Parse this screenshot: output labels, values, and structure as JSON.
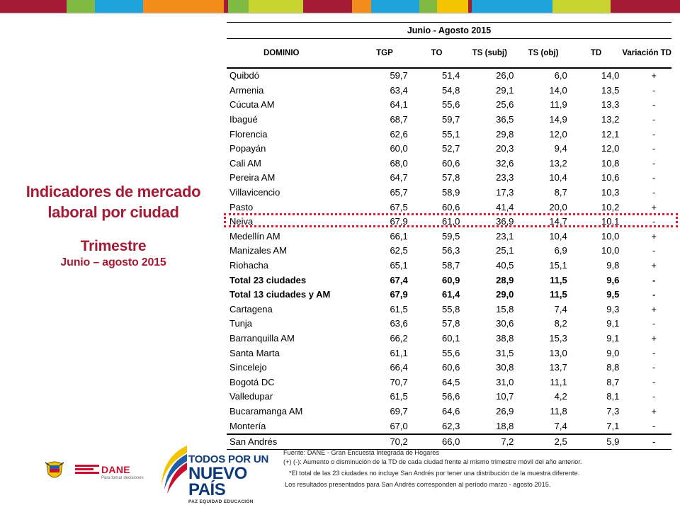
{
  "topbar": {
    "colors": [
      "#a51b35",
      "#a51b35",
      "#7fba42",
      "#1fa3dc",
      "#f28c1a",
      "#a51b35",
      "#7fba42",
      "#c7d32f",
      "#a51b35",
      "#f28c1a",
      "#1fa3dc",
      "#7fba42",
      "#f2c500",
      "#a51b35",
      "#1fa3dc",
      "#c7d32f",
      "#a51b35"
    ]
  },
  "left": {
    "title_line1": "Indicadores de mercado",
    "title_line2": "laboral por ciudad",
    "subtitle": "Trimestre",
    "period": "Junio – agosto 2015"
  },
  "table": {
    "title": "Junio - Agosto 2015",
    "headers": [
      "DOMINIO",
      "TGP",
      "TO",
      "TS (subj)",
      "TS (obj)",
      "TD",
      "Variación TD"
    ],
    "rows": [
      [
        "Quibdó",
        "59,7",
        "51,4",
        "26,0",
        "6,0",
        "14,0",
        "+"
      ],
      [
        "Armenia",
        "63,4",
        "54,8",
        "29,1",
        "14,0",
        "13,5",
        "-"
      ],
      [
        "Cúcuta AM",
        "64,1",
        "55,6",
        "25,6",
        "11,9",
        "13,3",
        "-"
      ],
      [
        "Ibagué",
        "68,7",
        "59,7",
        "36,5",
        "14,9",
        "13,2",
        "-"
      ],
      [
        "Florencia",
        "62,6",
        "55,1",
        "29,8",
        "12,0",
        "12,1",
        "-"
      ],
      [
        "Popayán",
        "60,0",
        "52,7",
        "20,3",
        "9,4",
        "12,0",
        "-"
      ],
      [
        "Cali AM",
        "68,0",
        "60,6",
        "32,6",
        "13,2",
        "10,8",
        "-"
      ],
      [
        "Pereira AM",
        "64,7",
        "57,8",
        "23,3",
        "10,4",
        "10,6",
        "-"
      ],
      [
        "Villavicencio",
        "65,7",
        "58,9",
        "17,3",
        "8,7",
        "10,3",
        "-"
      ],
      [
        "Pasto",
        "67,5",
        "60,6",
        "41,4",
        "20,0",
        "10,2",
        "+"
      ],
      [
        "Neiva",
        "67,9",
        "61,0",
        "36,9",
        "14,7",
        "10,1",
        "-"
      ],
      [
        "Medellín AM",
        "66,1",
        "59,5",
        "23,1",
        "10,4",
        "10,0",
        "+"
      ],
      [
        "Manizales AM",
        "62,5",
        "56,3",
        "25,1",
        "6,9",
        "10,0",
        "-"
      ],
      [
        "Riohacha",
        "65,1",
        "58,7",
        "40,5",
        "15,1",
        "9,8",
        "+"
      ],
      [
        "Total 23 ciudades",
        "67,4",
        "60,9",
        "28,9",
        "11,5",
        "9,6",
        "-"
      ],
      [
        "Total 13 ciudades y AM",
        "67,9",
        "61,4",
        "29,0",
        "11,5",
        "9,5",
        "-"
      ],
      [
        "Cartagena",
        "61,5",
        "55,8",
        "15,8",
        "7,4",
        "9,3",
        "+"
      ],
      [
        "Tunja",
        "63,6",
        "57,8",
        "30,6",
        "8,2",
        "9,1",
        "-"
      ],
      [
        "Barranquilla AM",
        "66,2",
        "60,1",
        "38,8",
        "15,3",
        "9,1",
        "+"
      ],
      [
        "Santa Marta",
        "61,1",
        "55,6",
        "31,5",
        "13,0",
        "9,0",
        "-"
      ],
      [
        "Sincelejo",
        "66,4",
        "60,6",
        "30,8",
        "13,7",
        "8,8",
        "-"
      ],
      [
        "Bogotá DC",
        "70,7",
        "64,5",
        "31,0",
        "11,1",
        "8,7",
        "-"
      ],
      [
        "Valledupar",
        "61,5",
        "56,6",
        "10,7",
        "4,2",
        "8,1",
        "-"
      ],
      [
        "Bucaramanga AM",
        "69,7",
        "64,6",
        "26,9",
        "11,8",
        "7,3",
        "+"
      ],
      [
        "Montería",
        "67,0",
        "62,3",
        "18,8",
        "7,4",
        "7,1",
        "-"
      ],
      [
        "San Andrés",
        "70,2",
        "66,0",
        "7,2",
        "2,5",
        "5,9",
        "-"
      ]
    ]
  },
  "logos": {
    "dane_word": "DANE",
    "dane_slogan": "Para tomar decisiones",
    "tpnp_line1": "TODOS POR UN",
    "tpnp_line2": "NUEVO PAÍS",
    "tpnp_line3": "PAZ  EQUIDAD  EDUCACIÓN"
  },
  "notes": {
    "source": "Fuente: DANE - Gran Encuesta Integrada de Hogares",
    "note1": "(+) (-): Aumento o disminución de la TD de cada ciudad frente al mismo trimestre móvil del año anterior.",
    "note2": "*El total de las 23 ciudades no incluye San Andrés por tener una distribución de la muestra diferente.",
    "note3": "Los resultados presentados para San Andrés corresponden al período marzo - agosto 2015."
  }
}
